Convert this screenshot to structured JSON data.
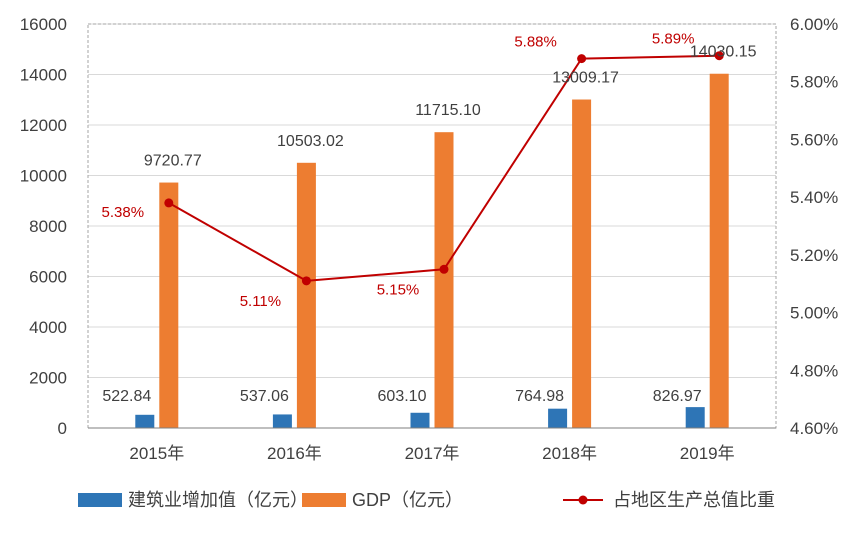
{
  "chart_data": {
    "type": "bar",
    "categories": [
      "2015年",
      "2016年",
      "2017年",
      "2018年",
      "2019年"
    ],
    "series": [
      {
        "name": "建筑业增加值（亿元）",
        "type": "bar",
        "axis": "left",
        "color": "#2e75b6",
        "values": [
          522.84,
          537.06,
          603.1,
          764.98,
          826.97
        ],
        "labels": [
          "522.84",
          "537.06",
          "603.10",
          "764.98",
          "826.97"
        ]
      },
      {
        "name": "GDP（亿元）",
        "type": "bar",
        "axis": "left",
        "color": "#ed7d31",
        "values": [
          9720.77,
          10503.02,
          11715.1,
          13009.17,
          14030.15
        ],
        "labels": [
          "9720.77",
          "10503.02",
          "11715.10",
          "13009.17",
          "14030.15"
        ]
      },
      {
        "name": "占地区生产总值比重",
        "type": "line",
        "axis": "right",
        "color": "#c00000",
        "values": [
          5.38,
          5.11,
          5.15,
          5.88,
          5.89
        ],
        "labels": [
          "5.38%",
          "5.11%",
          "5.15%",
          "5.88%",
          "5.89%"
        ]
      }
    ],
    "y_left": {
      "ticks": [
        "0",
        "2000",
        "4000",
        "6000",
        "8000",
        "10000",
        "12000",
        "14000",
        "16000"
      ],
      "range": [
        0,
        16000
      ]
    },
    "y_right": {
      "ticks": [
        "4.60%",
        "4.80%",
        "5.00%",
        "5.20%",
        "5.40%",
        "5.60%",
        "5.80%",
        "6.00%"
      ],
      "range": [
        4.6,
        6.0
      ]
    },
    "grid": true,
    "legend_position": "bottom"
  }
}
